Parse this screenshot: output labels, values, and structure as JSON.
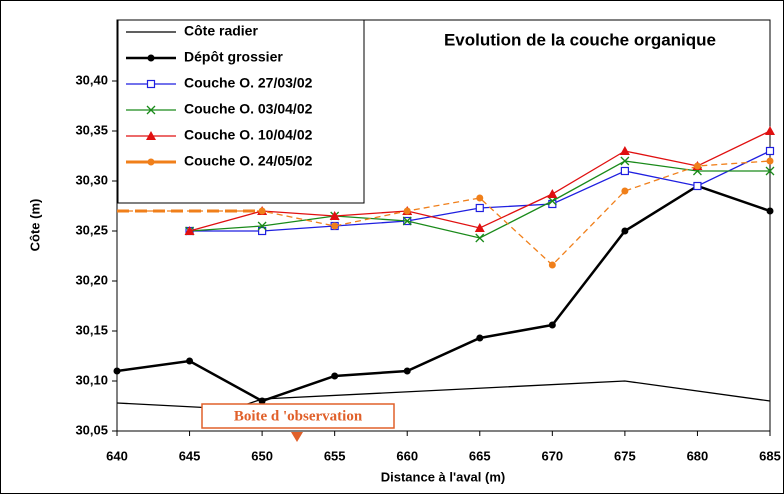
{
  "chart_data": {
    "type": "line",
    "title": "Evolution de la couche organique",
    "xlabel": "Distance à l'aval (m)",
    "ylabel": "Côte (m)",
    "annotation": "Boite d 'observation",
    "xlim": [
      640,
      685
    ],
    "xticks": [
      640,
      645,
      650,
      655,
      660,
      665,
      670,
      675,
      680,
      685
    ],
    "ylim": [
      30.05,
      30.4
    ],
    "yticks": [
      {
        "value": 30.05,
        "label": "30,05"
      },
      {
        "value": 30.1,
        "label": "30,10"
      },
      {
        "value": 30.15,
        "label": "30,15"
      },
      {
        "value": 30.2,
        "label": "30,20"
      },
      {
        "value": 30.25,
        "label": "30,25"
      },
      {
        "value": 30.3,
        "label": "30,30"
      },
      {
        "value": 30.35,
        "label": "30,35"
      },
      {
        "value": 30.4,
        "label": "30,40"
      }
    ],
    "series": [
      {
        "name": "Côte radier",
        "color": "#000000",
        "marker": "none",
        "x": [
          640,
          648,
          650,
          675,
          685
        ],
        "values": [
          30.078,
          30.072,
          30.082,
          30.1,
          30.08
        ]
      },
      {
        "name": "Dépôt grossier",
        "color": "#000000",
        "marker": "circle",
        "x": [
          640,
          645,
          650,
          655,
          660,
          665,
          670,
          675,
          680,
          685
        ],
        "values": [
          30.11,
          30.12,
          30.08,
          30.105,
          30.11,
          30.143,
          30.156,
          30.25,
          30.295,
          30.27
        ]
      },
      {
        "name": "Couche O. 27/03/02",
        "color": "#1f1fe0",
        "marker": "square",
        "x": [
          645,
          650,
          655,
          660,
          665,
          670,
          675,
          680,
          685
        ],
        "values": [
          30.25,
          30.25,
          30.255,
          30.26,
          30.273,
          30.277,
          30.31,
          30.295,
          30.33
        ]
      },
      {
        "name": "Couche O. 03/04/02",
        "color": "#1a8a1a",
        "marker": "x",
        "x": [
          645,
          650,
          655,
          660,
          665,
          670,
          675,
          680,
          685
        ],
        "values": [
          30.25,
          30.255,
          30.265,
          30.26,
          30.243,
          30.28,
          30.32,
          30.31,
          30.31
        ]
      },
      {
        "name": "Couche O. 10/04/02",
        "color": "#e01010",
        "marker": "triangle",
        "x": [
          645,
          650,
          655,
          660,
          665,
          670,
          675,
          680,
          685
        ],
        "values": [
          30.25,
          30.27,
          30.265,
          30.27,
          30.253,
          30.287,
          30.33,
          30.315,
          30.35
        ]
      },
      {
        "name": "Couche O. 24/05/02",
        "color": "#f07f1a",
        "marker": "circle",
        "dashed": true,
        "x": [
          640,
          650,
          655,
          660,
          665,
          670,
          675,
          680,
          685
        ],
        "values": [
          30.27,
          30.27,
          30.255,
          30.27,
          30.283,
          30.216,
          30.29,
          30.315,
          30.32
        ]
      }
    ]
  }
}
